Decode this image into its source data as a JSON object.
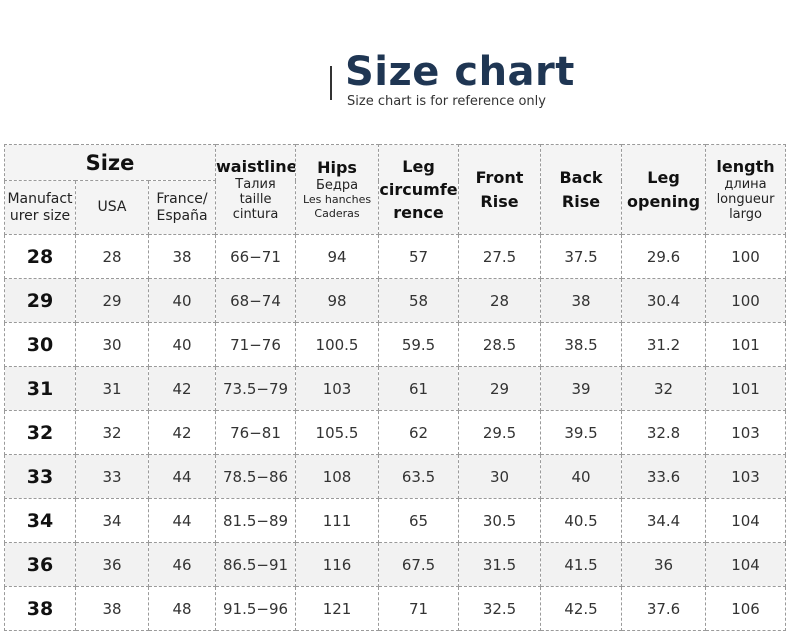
{
  "header": {
    "title": "Size chart",
    "subtitle": "Size chart is for reference only"
  },
  "table": {
    "size_group": "Size",
    "sub_headers": [
      "Manufact urer size",
      "USA",
      "France/ España"
    ],
    "columns": [
      {
        "title": "waistline",
        "lines": [
          "Талия",
          "taille",
          "cintura"
        ]
      },
      {
        "title": "Hips",
        "lines": [
          "Бедра",
          "Les hanches",
          "Caderas"
        ]
      },
      {
        "title": "Leg circumfe rence",
        "lines": []
      },
      {
        "title": "Front Rise",
        "lines": []
      },
      {
        "title": "Back Rise",
        "lines": []
      },
      {
        "title": "Leg opening",
        "lines": []
      },
      {
        "title": "length",
        "lines": [
          "длина",
          "longueur",
          "largo"
        ]
      }
    ],
    "rows": [
      [
        "28",
        "28",
        "38",
        "66−71",
        "94",
        "57",
        "27.5",
        "37.5",
        "29.6",
        "100"
      ],
      [
        "29",
        "29",
        "40",
        "68−74",
        "98",
        "58",
        "28",
        "38",
        "30.4",
        "100"
      ],
      [
        "30",
        "30",
        "40",
        "71−76",
        "100.5",
        "59.5",
        "28.5",
        "38.5",
        "31.2",
        "101"
      ],
      [
        "31",
        "31",
        "42",
        "73.5−79",
        "103",
        "61",
        "29",
        "39",
        "32",
        "101"
      ],
      [
        "32",
        "32",
        "42",
        "76−81",
        "105.5",
        "62",
        "29.5",
        "39.5",
        "32.8",
        "103"
      ],
      [
        "33",
        "33",
        "44",
        "78.5−86",
        "108",
        "63.5",
        "30",
        "40",
        "33.6",
        "103"
      ],
      [
        "34",
        "34",
        "44",
        "81.5−89",
        "111",
        "65",
        "30.5",
        "40.5",
        "34.4",
        "104"
      ],
      [
        "36",
        "36",
        "46",
        "86.5−91",
        "116",
        "67.5",
        "31.5",
        "41.5",
        "36",
        "104"
      ],
      [
        "38",
        "38",
        "48",
        "91.5−96",
        "121",
        "71",
        "32.5",
        "42.5",
        "37.6",
        "106"
      ]
    ]
  }
}
